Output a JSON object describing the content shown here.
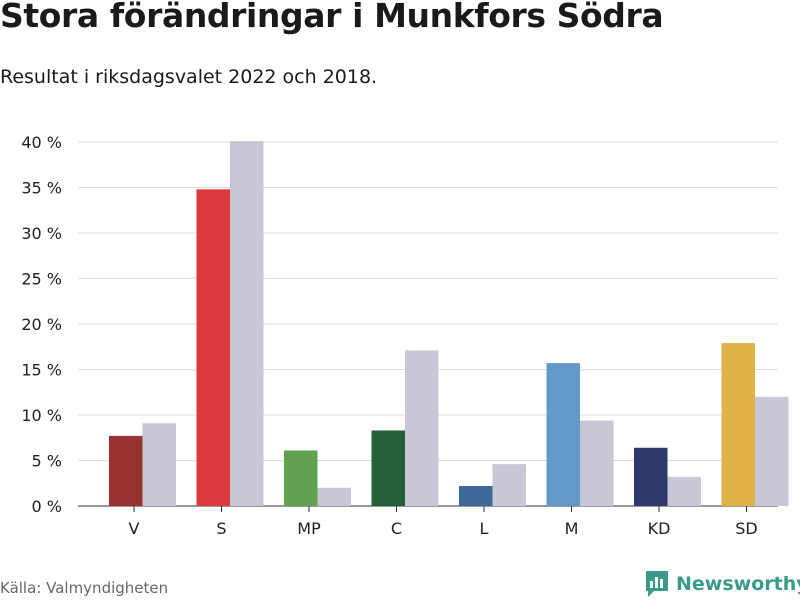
{
  "header": {
    "title": "Stora förändringar i Munkfors Södra",
    "subtitle": "Resultat i riksdagsvalet 2022 och 2018."
  },
  "footer": {
    "source": "Källa: Valmyndigheten",
    "brand": "Newsworthy"
  },
  "chart_data": {
    "type": "bar",
    "title": "Stora förändringar i Munkfors Södra",
    "subtitle": "Resultat i riksdagsvalet 2022 och 2018.",
    "categories": [
      "V",
      "S",
      "MP",
      "C",
      "L",
      "M",
      "KD",
      "SD"
    ],
    "series": [
      {
        "values": [
          7.7,
          34.8,
          6.1,
          8.3,
          2.2,
          15.7,
          6.4,
          17.9
        ],
        "colors": [
          "#993333",
          "#dd3a3f",
          "#62a150",
          "#235f37",
          "#3e6797",
          "#6399c8",
          "#2e3a6e",
          "#dfb347"
        ]
      },
      {
        "values": [
          9.1,
          40.1,
          2.0,
          17.1,
          4.6,
          9.4,
          3.2,
          12.0
        ],
        "color": "#c8c7d5"
      }
    ],
    "y_ticks": [
      "0 %",
      "5 %",
      "10 %",
      "15 %",
      "20 %",
      "25 %",
      "30 %",
      "35 %",
      "40 %"
    ],
    "ylim": [
      0,
      40
    ],
    "grid": true
  }
}
